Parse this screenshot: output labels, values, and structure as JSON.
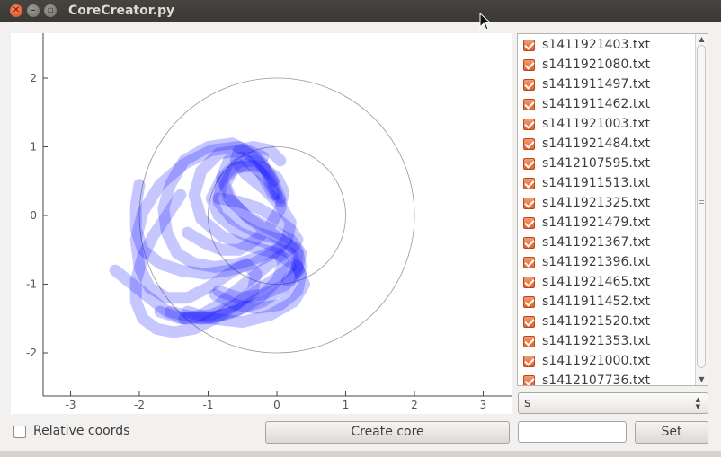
{
  "window": {
    "title": "CoreCreator.py"
  },
  "chart_data": {
    "type": "scatter",
    "xlim": [
      -3.4,
      3.4
    ],
    "ylim": [
      -2.6,
      2.6
    ],
    "x_ticks": [
      "-3",
      "-2",
      "-1",
      "0",
      "1",
      "2",
      "3"
    ],
    "y_ticks": [
      "2",
      "1",
      "0",
      "-1",
      "-2"
    ],
    "circles": [
      {
        "cx": 0,
        "cy": 0,
        "r": 1
      },
      {
        "cx": 0,
        "cy": 0,
        "r": 2
      }
    ],
    "grid": false,
    "series_color": "#0000ff",
    "series": [
      {
        "x": [
          0.05,
          -0.1,
          -0.3,
          -0.55,
          -0.8,
          -0.95,
          -0.85,
          -0.55,
          -0.15,
          0.2,
          0.35,
          0.3,
          0.05,
          -0.3,
          -0.6,
          -0.9
        ],
        "y": [
          0.25,
          0.6,
          0.8,
          0.78,
          0.55,
          0.25,
          0.0,
          -0.25,
          -0.4,
          -0.55,
          -0.85,
          -1.1,
          -1.3,
          -1.35,
          -1.3,
          -1.15
        ]
      },
      {
        "x": [
          0.0,
          -0.2,
          -0.5,
          -0.85,
          -1.1,
          -1.2,
          -1.1,
          -0.8,
          -0.4,
          0.0,
          0.3,
          0.4,
          0.25,
          -0.1,
          -0.5,
          -0.95,
          -1.3
        ],
        "y": [
          0.3,
          0.75,
          0.95,
          0.9,
          0.65,
          0.3,
          -0.05,
          -0.3,
          -0.45,
          -0.55,
          -0.75,
          -1.0,
          -1.25,
          -1.45,
          -1.55,
          -1.5,
          -1.4
        ]
      },
      {
        "x": [
          0.05,
          -0.15,
          -0.35,
          -0.6,
          -0.8,
          -0.85,
          -0.65,
          -0.3,
          0.05,
          0.3,
          0.35,
          0.15,
          -0.2,
          -0.55,
          -0.85
        ],
        "y": [
          0.2,
          0.55,
          0.72,
          0.7,
          0.5,
          0.2,
          -0.05,
          -0.25,
          -0.35,
          -0.5,
          -0.75,
          -1.0,
          -1.15,
          -1.2,
          -1.1
        ]
      },
      {
        "x": [
          -0.05,
          -0.3,
          -0.65,
          -1.0,
          -1.35,
          -1.55,
          -1.65,
          -1.6,
          -1.45,
          -1.2,
          -0.9,
          -0.55,
          -0.25,
          0.0,
          0.1,
          0.0,
          -0.25,
          -0.6,
          -1.0,
          -1.4,
          -1.7
        ],
        "y": [
          0.5,
          0.85,
          1.05,
          1.0,
          0.8,
          0.45,
          0.1,
          -0.25,
          -0.55,
          -0.7,
          -0.75,
          -0.7,
          -0.6,
          -0.5,
          -0.7,
          -0.95,
          -1.2,
          -1.4,
          -1.5,
          -1.5,
          -1.4
        ]
      },
      {
        "x": [
          -0.2,
          -0.55,
          -0.95,
          -1.35,
          -1.7,
          -1.95,
          -2.05,
          -2.0,
          -1.85,
          -1.6,
          -1.3,
          -1.0,
          -0.7,
          -0.45,
          -0.3,
          -0.35,
          -0.6,
          -0.95,
          -1.35
        ],
        "y": [
          0.85,
          1.0,
          0.95,
          0.75,
          0.45,
          0.05,
          -0.35,
          -0.75,
          -1.05,
          -1.2,
          -1.2,
          -1.05,
          -0.85,
          -0.7,
          -0.85,
          -1.1,
          -1.3,
          -1.45,
          -1.5
        ]
      },
      {
        "x": [
          -1.4,
          -1.6,
          -1.8,
          -1.95,
          -2.05,
          -2.05,
          -1.95,
          -1.75,
          -1.5,
          -1.2,
          -0.9,
          -0.6,
          -0.3,
          0.0,
          0.2
        ],
        "y": [
          0.3,
          0.0,
          -0.3,
          -0.6,
          -0.95,
          -1.25,
          -1.5,
          -1.65,
          -1.7,
          -1.65,
          -1.5,
          -1.3,
          -1.1,
          -0.9,
          -0.75
        ]
      },
      {
        "x": [
          -2.35,
          -2.1,
          -1.85,
          -1.6,
          -1.35,
          -1.1,
          -0.85,
          -0.6,
          -0.35,
          -0.1,
          0.1,
          0.25,
          0.3,
          0.2,
          0.0,
          -0.25,
          -0.55,
          -0.85
        ],
        "y": [
          -0.8,
          -1.0,
          -1.2,
          -1.4,
          -1.5,
          -1.45,
          -1.3,
          -1.1,
          -0.9,
          -0.7,
          -0.55,
          -0.45,
          -0.35,
          -0.2,
          -0.05,
          0.1,
          0.2,
          0.25
        ]
      },
      {
        "x": [
          -2.0,
          -2.05,
          -2.05,
          -1.95,
          -1.7,
          -1.4,
          -1.05,
          -0.7,
          -0.35,
          -0.05,
          0.15,
          0.2,
          0.05,
          -0.2,
          -0.45,
          -0.6,
          -0.55,
          -0.35,
          -0.1,
          0.05
        ],
        "y": [
          0.45,
          0.15,
          -0.2,
          -0.5,
          -0.7,
          -0.8,
          -0.85,
          -0.8,
          -0.7,
          -0.55,
          -0.35,
          -0.1,
          0.15,
          0.4,
          0.6,
          0.8,
          0.95,
          1.0,
          0.95,
          0.8
        ]
      },
      {
        "x": [
          -1.3,
          -1.05,
          -0.8,
          -0.55,
          -0.3,
          -0.1,
          0.05,
          0.1,
          0.0,
          -0.2,
          -0.45,
          -0.65,
          -0.75,
          -0.65,
          -0.4,
          -0.1,
          0.15,
          0.3,
          0.3,
          0.15
        ],
        "y": [
          -0.25,
          -0.4,
          -0.5,
          -0.5,
          -0.35,
          -0.15,
          0.1,
          0.35,
          0.55,
          0.7,
          0.75,
          0.65,
          0.45,
          0.2,
          -0.05,
          -0.25,
          -0.4,
          -0.55,
          -0.75,
          -0.95
        ]
      },
      {
        "x": [
          -0.05,
          -0.25,
          -0.5,
          -0.7,
          -0.8,
          -0.7,
          -0.45,
          -0.1,
          0.2,
          0.35,
          0.3,
          0.1,
          -0.2,
          -0.5,
          -0.8,
          -1.1,
          -1.35,
          -1.55
        ],
        "y": [
          0.3,
          0.65,
          0.85,
          0.8,
          0.55,
          0.25,
          0.0,
          -0.2,
          -0.35,
          -0.55,
          -0.8,
          -1.05,
          -1.25,
          -1.35,
          -1.45,
          -1.5,
          -1.45,
          -1.4
        ]
      }
    ]
  },
  "files": [
    {
      "name": "s1411921403.txt",
      "checked": true
    },
    {
      "name": "s1411921080.txt",
      "checked": true
    },
    {
      "name": "s1411911497.txt",
      "checked": true
    },
    {
      "name": "s1411911462.txt",
      "checked": true
    },
    {
      "name": "s1411921003.txt",
      "checked": true
    },
    {
      "name": "s1411921484.txt",
      "checked": true
    },
    {
      "name": "s1412107595.txt",
      "checked": true
    },
    {
      "name": "s1411911513.txt",
      "checked": true
    },
    {
      "name": "s1411921325.txt",
      "checked": true
    },
    {
      "name": "s1411921479.txt",
      "checked": true
    },
    {
      "name": "s1411921367.txt",
      "checked": true
    },
    {
      "name": "s1411921396.txt",
      "checked": true
    },
    {
      "name": "s1411921465.txt",
      "checked": true
    },
    {
      "name": "s1411911452.txt",
      "checked": true
    },
    {
      "name": "s1411921520.txt",
      "checked": true
    },
    {
      "name": "s1411921353.txt",
      "checked": true
    },
    {
      "name": "s1411921000.txt",
      "checked": true
    },
    {
      "name": "s1412107736.txt",
      "checked": true
    }
  ],
  "combo": {
    "value": "s"
  },
  "controls": {
    "relative_label": "Relative coords",
    "create_label": "Create core",
    "set_label": "Set",
    "value_input": ""
  },
  "icons": {
    "close": "close-icon",
    "minimize": "minimize-icon",
    "maximize": "maximize-icon",
    "cursor": "mouse-pointer-icon"
  }
}
